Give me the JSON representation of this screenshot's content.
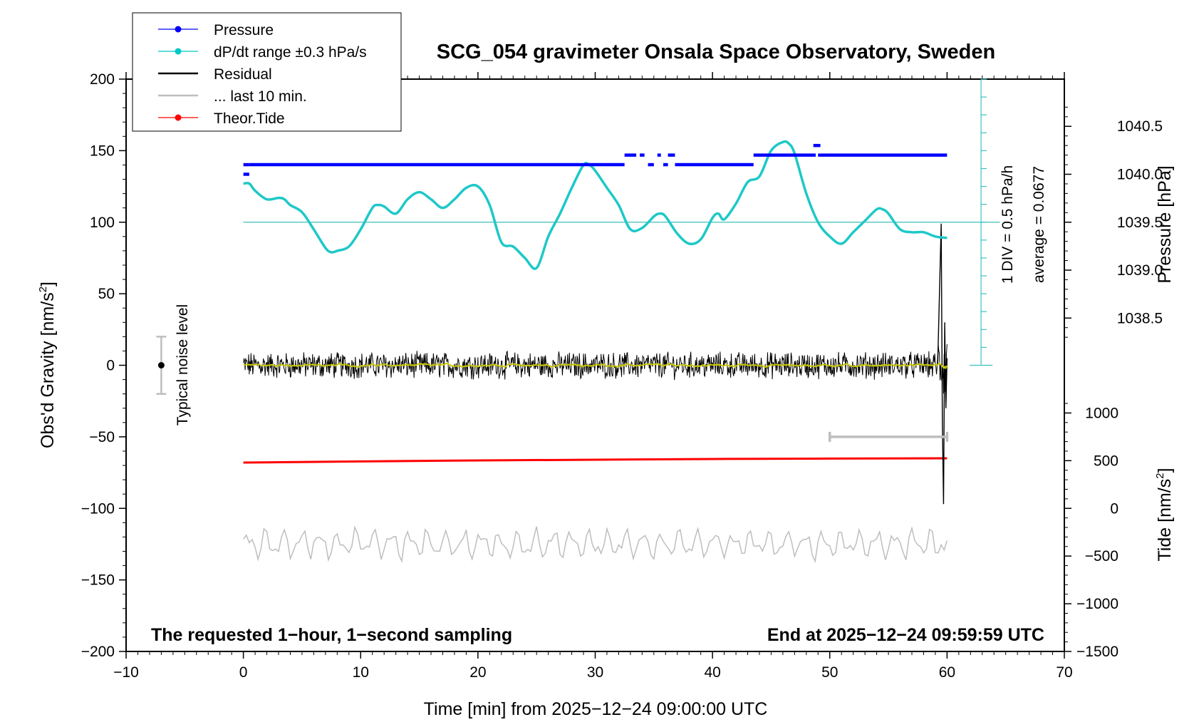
{
  "chart_data": {
    "type": "line",
    "title": "SCG_054 gravimeter Onsala Space Observatory, Sweden",
    "xlabel": "Time [min] from 2025−12−24 09:00:00 UTC",
    "ylabel": "Obs'd Gravity [nm/s²]",
    "ylabel_main": "Obs'd Gravity [nm/s",
    "ylabel_sup": "2",
    "ylabel_end": "]",
    "xlim": [
      -10,
      70
    ],
    "ylim": [
      -200,
      200
    ],
    "x_ticks": [
      -10,
      0,
      10,
      20,
      30,
      40,
      50,
      60,
      70
    ],
    "x_tick_labels": [
      "−10",
      "0",
      "10",
      "20",
      "30",
      "40",
      "50",
      "60",
      "70"
    ],
    "y_ticks": [
      -200,
      -150,
      -100,
      -50,
      0,
      50,
      100,
      150,
      200
    ],
    "y_tick_labels": [
      "−200",
      "−150",
      "−100",
      "−50",
      "0",
      "50",
      "100",
      "150",
      "200"
    ],
    "pressure_axis": {
      "label": "Pressure [hPa]",
      "tick_values": [
        1038.5,
        1039.0,
        1039.5,
        1040.0,
        1040.5
      ],
      "tick_labels": [
        "1038.5",
        "1039.0",
        "1039.5",
        "1040.0",
        "1040.5"
      ],
      "map": {
        "value_a": 1039.5,
        "gravity_a": 100,
        "value_b": 1040.0,
        "gravity_b": 133.5
      }
    },
    "tide_axis": {
      "label_main": "Tide [nm/s",
      "label_sup": "2",
      "label_end": "]",
      "tick_values": [
        -1500,
        -1000,
        -500,
        0,
        500,
        1000
      ],
      "tick_labels": [
        "−1500",
        "−1000",
        "−500",
        "0",
        "500",
        "1000"
      ],
      "map": {
        "value_a": 0,
        "gravity_a": -100,
        "value_b": -1500,
        "gravity_b": -200
      }
    },
    "dpdt_scale": {
      "label_div": "1 DIV = 0.5 hPa/h",
      "label_avg": "average = 0.0677",
      "x": 62.9,
      "y_from": 0,
      "y_to": 200,
      "tick_step": 12.5
    },
    "noise_bar": {
      "label": "Typical noise level",
      "x": -7,
      "center": 0,
      "low": -20,
      "high": 20
    },
    "last10_bar": {
      "x_from": 50,
      "x_to": 60,
      "y": -50
    },
    "legend": [
      {
        "label": "Pressure",
        "color": "#0000ff",
        "marker": true
      },
      {
        "label": "dP/dt range ±0.3 hPa/s",
        "color": "#00c8c8",
        "marker": true
      },
      {
        "label": "Residual",
        "color": "#000000",
        "marker": false
      },
      {
        "label": "... last 10 min.",
        "color": "#bebebe",
        "marker": false
      },
      {
        "label": "Theor.Tide",
        "color": "#ff0000",
        "marker": true
      }
    ],
    "annotations": {
      "bottom_left": "The requested 1−hour, 1−second sampling",
      "bottom_right": "End at 2025−12−24 09:59:59 UTC"
    },
    "colors": {
      "pressure": "#0000ff",
      "dpdt": "#1ec8c8",
      "dpdt_ref": "#3cc0c0",
      "residual": "#000000",
      "residual_smooth": "#c8c800",
      "last10": "#bebebe",
      "tide": "#ff0000",
      "noise": "#bebebe"
    },
    "series": [
      {
        "name": "Pressure",
        "unit": "hPa",
        "segments": [
          {
            "x": [
              0,
              0.5
            ],
            "y": [
              1040.0,
              1040.0
            ]
          },
          {
            "x": [
              0,
              0.5
            ],
            "y": [
              1040.1,
              1040.1
            ]
          },
          {
            "x": [
              0.5,
              32.5
            ],
            "y": [
              1040.1,
              1040.1
            ]
          },
          {
            "x": [
              32.5,
              33.5
            ],
            "y": [
              1040.2,
              1040.2
            ]
          },
          {
            "x": [
              33.8,
              34.2
            ],
            "y": [
              1040.2,
              1040.2
            ]
          },
          {
            "x": [
              34.5,
              35.0
            ],
            "y": [
              1040.1,
              1040.1
            ]
          },
          {
            "x": [
              35.3,
              35.6
            ],
            "y": [
              1040.2,
              1040.2
            ]
          },
          {
            "x": [
              35.8,
              36.2
            ],
            "y": [
              1040.1,
              1040.1
            ]
          },
          {
            "x": [
              36.2,
              36.8
            ],
            "y": [
              1040.2,
              1040.2
            ]
          },
          {
            "x": [
              36.8,
              43.5
            ],
            "y": [
              1040.1,
              1040.1
            ]
          },
          {
            "x": [
              43.5,
              48.8
            ],
            "y": [
              1040.2,
              1040.2
            ]
          },
          {
            "x": [
              48.6,
              49.2
            ],
            "y": [
              1040.3,
              1040.3
            ]
          },
          {
            "x": [
              49.0,
              60.0
            ],
            "y": [
              1040.2,
              1040.2
            ]
          }
        ]
      },
      {
        "name": "dP/dt range",
        "unit": "nm/s² (plot units)",
        "x": [
          0,
          0.5,
          1,
          2,
          3,
          3.5,
          4,
          5,
          6,
          7,
          7.5,
          8,
          9,
          10,
          11,
          11.5,
          12,
          13,
          14,
          15,
          16,
          17,
          18,
          19,
          20,
          21,
          22,
          23,
          24,
          25,
          26,
          27,
          28,
          29,
          29.5,
          30,
          31,
          32,
          33,
          34,
          35,
          35.5,
          36,
          37,
          38,
          39,
          40,
          40.5,
          41,
          42,
          43,
          44,
          45,
          46,
          46.5,
          47,
          48,
          49,
          50,
          51,
          52,
          53,
          54,
          54.5,
          55,
          56,
          57,
          58,
          59,
          60
        ],
        "y": [
          127,
          127,
          122,
          116,
          117,
          116,
          112,
          107,
          95,
          82,
          79,
          80,
          83,
          95,
          110,
          112,
          111,
          106,
          116,
          121,
          116,
          110,
          116,
          124,
          125,
          112,
          86,
          83,
          75,
          68,
          90,
          106,
          124,
          140,
          140,
          136,
          124,
          112,
          95,
          96,
          104,
          106,
          104,
          92,
          85,
          88,
          103,
          106,
          102,
          113,
          128,
          132,
          150,
          156,
          155,
          148,
          120,
          100,
          90,
          85,
          93,
          101,
          109,
          109,
          106,
          95,
          93,
          93,
          90,
          89
        ]
      },
      {
        "name": "Residual",
        "unit": "nm/s²",
        "noise_amplitude": 8,
        "spike": {
          "x_from": 59.2,
          "x_to": 60,
          "y_max": 99,
          "y_min": -97
        }
      },
      {
        "name": "... last 10 min.",
        "unit": "nm/s² (plot units)",
        "offset": -125,
        "amplitude": 7
      },
      {
        "name": "Theor.Tide",
        "unit": "nm/s²",
        "x": [
          0,
          10,
          20,
          30,
          40,
          50,
          60
        ],
        "y": [
          -68,
          -67.2,
          -66.5,
          -66,
          -65.5,
          -65.2,
          -65
        ]
      }
    ]
  }
}
